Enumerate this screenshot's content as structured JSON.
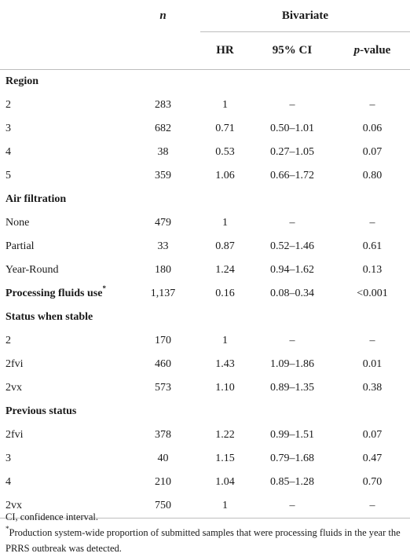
{
  "header": {
    "n_label": "n",
    "group_label": "Bivariate",
    "hr_label": "HR",
    "ci_label": "95% CI",
    "p_label_italic": "p",
    "p_label_rest": "-value"
  },
  "rows": [
    {
      "label": "Region",
      "section": true,
      "n": "",
      "hr": "",
      "ci": "",
      "p": ""
    },
    {
      "label": "2",
      "n": "283",
      "hr": "1",
      "ci": "–",
      "p": "–"
    },
    {
      "label": "3",
      "n": "682",
      "hr": "0.71",
      "ci": "0.50–1.01",
      "p": "0.06"
    },
    {
      "label": "4",
      "n": "38",
      "hr": "0.53",
      "ci": "0.27–1.05",
      "p": "0.07"
    },
    {
      "label": "5",
      "n": "359",
      "hr": "1.06",
      "ci": "0.66–1.72",
      "p": "0.80"
    },
    {
      "label": "Air filtration",
      "section": true,
      "n": "",
      "hr": "",
      "ci": "",
      "p": ""
    },
    {
      "label": "None",
      "n": "479",
      "hr": "1",
      "ci": "–",
      "p": "–"
    },
    {
      "label": "Partial",
      "n": "33",
      "hr": "0.87",
      "ci": "0.52–1.46",
      "p": "0.61"
    },
    {
      "label": "Year-Round",
      "n": "180",
      "hr": "1.24",
      "ci": "0.94–1.62",
      "p": "0.13"
    },
    {
      "label": "Processing fluids use",
      "sup": "*",
      "section": true,
      "n": "1,137",
      "hr": "0.16",
      "ci": "0.08–0.34",
      "p": "<0.001"
    },
    {
      "label": "Status when stable",
      "section": true,
      "n": "",
      "hr": "",
      "ci": "",
      "p": ""
    },
    {
      "label": "2",
      "n": "170",
      "hr": "1",
      "ci": "–",
      "p": "–"
    },
    {
      "label": "2fvi",
      "n": "460",
      "hr": "1.43",
      "ci": "1.09–1.86",
      "p": "0.01"
    },
    {
      "label": "2vx",
      "n": "573",
      "hr": "1.10",
      "ci": "0.89–1.35",
      "p": "0.38"
    },
    {
      "label": "Previous status",
      "section": true,
      "n": "",
      "hr": "",
      "ci": "",
      "p": ""
    },
    {
      "label": "2fvi",
      "n": "378",
      "hr": "1.22",
      "ci": "0.99–1.51",
      "p": "0.07"
    },
    {
      "label": "3",
      "n": "40",
      "hr": "1.15",
      "ci": "0.79–1.68",
      "p": "0.47"
    },
    {
      "label": "4",
      "n": "210",
      "hr": "1.04",
      "ci": "0.85–1.28",
      "p": "0.70"
    },
    {
      "label": "2vx",
      "n": "750",
      "hr": "1",
      "ci": "–",
      "p": "–"
    }
  ],
  "notes": {
    "abbrev": "CI, confidence interval.",
    "footnote_mark": "*",
    "footnote": "Production system-wide proportion of submitted samples that were processing fluids in the year the PRRS outbreak was detected."
  }
}
